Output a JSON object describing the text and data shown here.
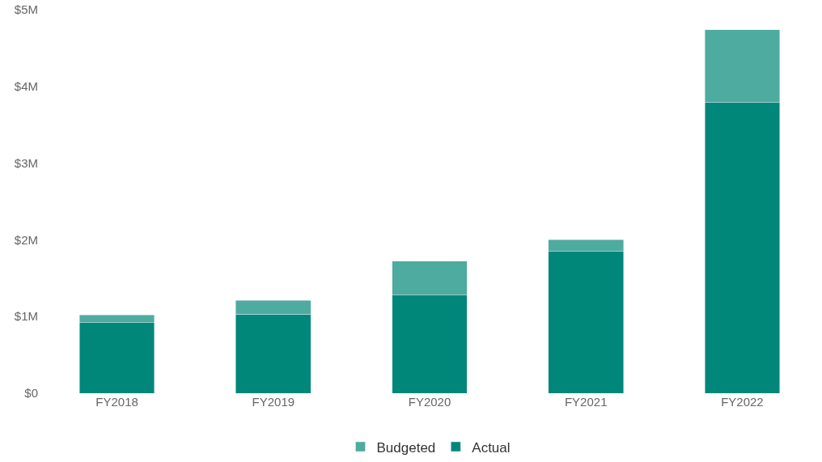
{
  "chart_data": {
    "type": "bar",
    "stacked": true,
    "categories": [
      "FY2018",
      "FY2019",
      "FY2020",
      "FY2021",
      "FY2022"
    ],
    "series": [
      {
        "name": "Actual",
        "color": "#00877a",
        "values": [
          0.92,
          1.03,
          1.28,
          1.85,
          3.79
        ]
      },
      {
        "name": "Budgeted",
        "color": "#4dab9f",
        "values": [
          0.1,
          0.18,
          0.44,
          0.15,
          0.95
        ]
      }
    ],
    "ylim": [
      0,
      5
    ],
    "yticks": [
      {
        "value": 0,
        "label": "$0"
      },
      {
        "value": 1,
        "label": "$1M"
      },
      {
        "value": 2,
        "label": "$2M"
      },
      {
        "value": 3,
        "label": "$3M"
      },
      {
        "value": 4,
        "label": "$4M"
      },
      {
        "value": 5,
        "label": "$5M"
      }
    ],
    "grid": false,
    "legend": "bottom"
  }
}
